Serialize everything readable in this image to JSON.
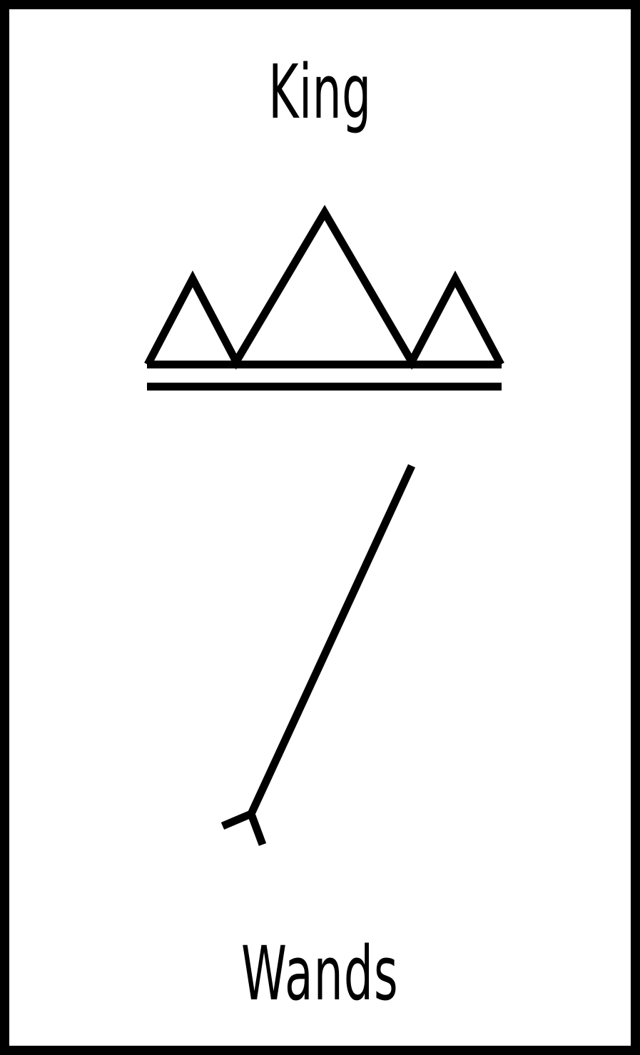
{
  "card": {
    "rank": "King",
    "suit": "Wands",
    "rank_symbol": "crown-icon",
    "suit_symbol": "wand-icon",
    "colors": {
      "ink": "#000000",
      "background": "#ffffff"
    }
  }
}
